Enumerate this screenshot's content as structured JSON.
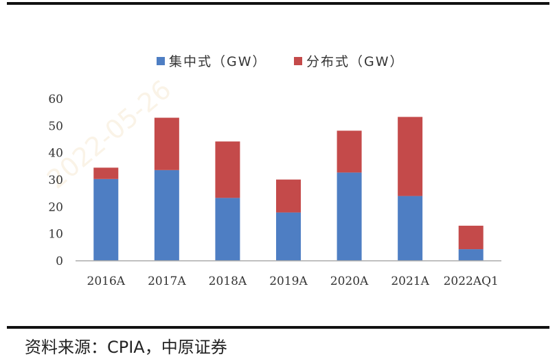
{
  "source_note": "资料来源：CPIA，中原证券",
  "colors": {
    "series_1": "#4e7ec3",
    "series_2": "#c44a4a"
  },
  "chart_data": {
    "type": "bar",
    "stacked": true,
    "categories": [
      "2016A",
      "2017A",
      "2018A",
      "2019A",
      "2020A",
      "2021A",
      "2022AQ1"
    ],
    "series": [
      {
        "name": "集中式（GW）",
        "values": [
          30.3,
          33.6,
          23.3,
          17.9,
          32.7,
          24.0,
          4.3
        ]
      },
      {
        "name": "分布式（GW）",
        "values": [
          4.2,
          19.4,
          20.9,
          12.2,
          15.5,
          29.3,
          8.7
        ]
      }
    ],
    "ylim": [
      0,
      60
    ],
    "yticks": [
      0,
      10,
      20,
      30,
      40,
      50,
      60
    ],
    "legend": "top",
    "grid": false
  }
}
